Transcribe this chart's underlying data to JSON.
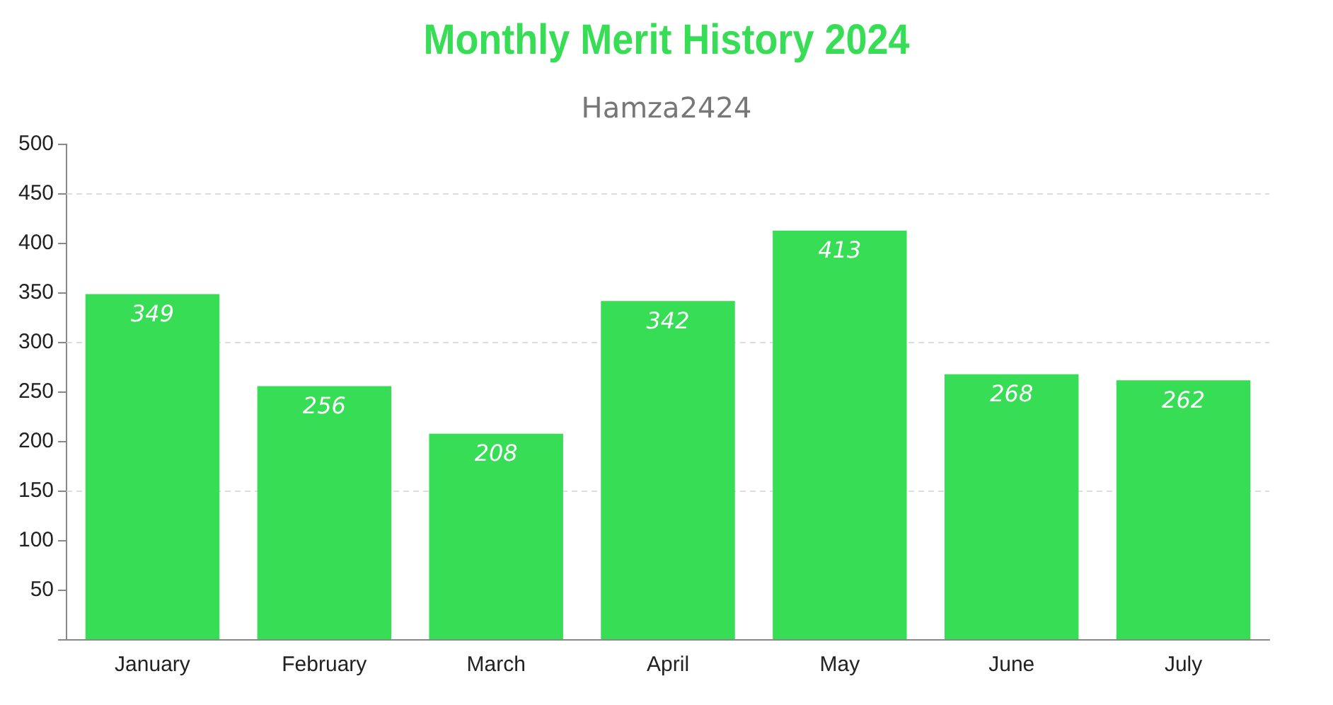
{
  "chart_data": {
    "type": "bar",
    "title": "Monthly Merit History 2024",
    "subtitle": "Hamza2424",
    "categories": [
      "January",
      "February",
      "March",
      "April",
      "May",
      "June",
      "July"
    ],
    "values": [
      349,
      256,
      208,
      342,
      413,
      268,
      262
    ],
    "color": "#36dd55",
    "ylim": [
      0,
      500
    ],
    "yticks": [
      {
        "value": 0,
        "label": null
      },
      50,
      100,
      150,
      200,
      250,
      300,
      350,
      400,
      450,
      500
    ],
    "ref_lines": [
      {
        "axis": "y",
        "value": 150,
        "color": "#dddddd",
        "line_style": "dashed"
      },
      {
        "axis": "y",
        "value": 300,
        "color": "#dddddd",
        "line_style": "dashed"
      },
      {
        "axis": "y",
        "value": 450,
        "color": "#dddddd",
        "line_style": "dashed"
      }
    ],
    "grid": false,
    "legend": false,
    "data_labels": true
  }
}
